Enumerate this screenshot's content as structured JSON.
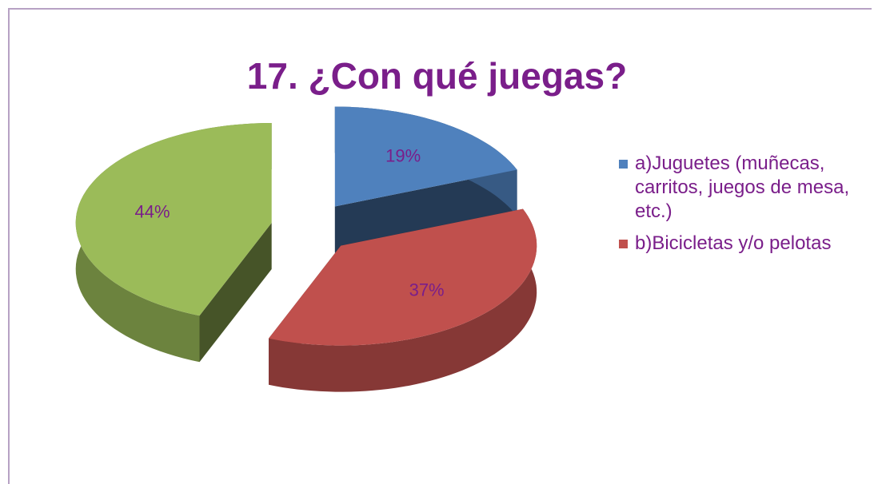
{
  "chart_data": {
    "type": "pie",
    "title": "17. ¿Con qué juegas?",
    "categories": [
      "a)Juguetes (muñecas, carritos, juegos de mesa, etc.)",
      "b)Bicicletas y/o pelotas",
      null
    ],
    "values": [
      19,
      37,
      44
    ],
    "value_labels": [
      "19%",
      "37%",
      "44%"
    ],
    "colors": [
      "#4f81bd",
      "#c0504d",
      "#9bbb59"
    ],
    "legend": "right"
  }
}
